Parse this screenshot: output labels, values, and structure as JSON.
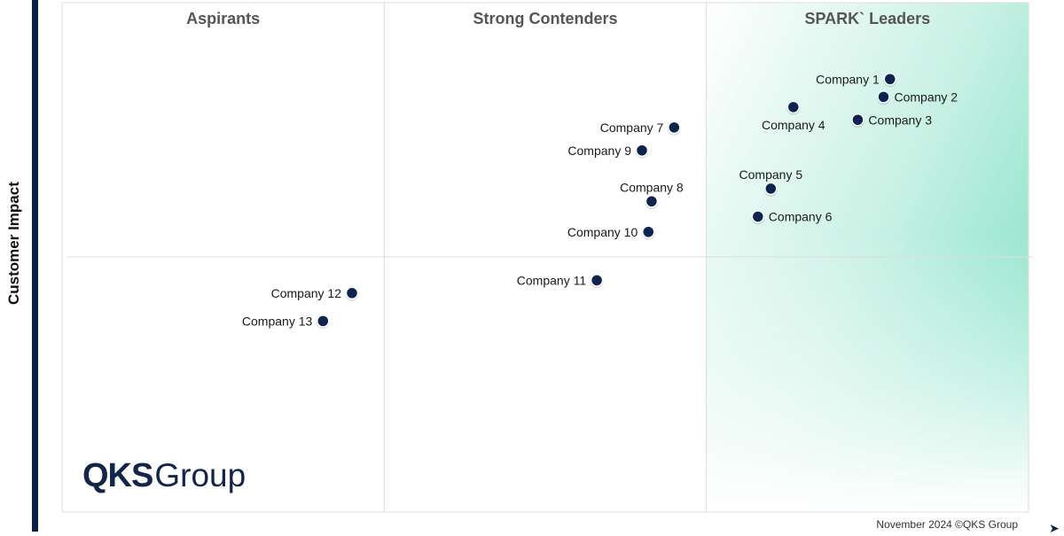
{
  "chart_data": {
    "type": "scatter",
    "title": "",
    "ylabel": "Customer Impact",
    "xlabel": "",
    "xlim": [
      0,
      3
    ],
    "ylim": [
      0,
      2
    ],
    "quadrants": [
      {
        "name": "Aspirants"
      },
      {
        "name": "Strong Contenders"
      },
      {
        "name": "SPARK` Leaders"
      }
    ],
    "points": [
      {
        "name": "Company 1",
        "x": 2.57,
        "y": 1.7,
        "label_side": "left"
      },
      {
        "name": "Company 2",
        "x": 2.55,
        "y": 1.63,
        "label_side": "right"
      },
      {
        "name": "Company 3",
        "x": 2.47,
        "y": 1.54,
        "label_side": "right"
      },
      {
        "name": "Company 4",
        "x": 2.27,
        "y": 1.59,
        "label_side": "below"
      },
      {
        "name": "Company 5",
        "x": 2.2,
        "y": 1.27,
        "label_side": "above"
      },
      {
        "name": "Company 6",
        "x": 2.16,
        "y": 1.16,
        "label_side": "right"
      },
      {
        "name": "Company 7",
        "x": 1.9,
        "y": 1.51,
        "label_side": "left"
      },
      {
        "name": "Company 8",
        "x": 1.83,
        "y": 1.22,
        "label_side": "above"
      },
      {
        "name": "Company 9",
        "x": 1.8,
        "y": 1.42,
        "label_side": "left"
      },
      {
        "name": "Company 10",
        "x": 1.82,
        "y": 1.1,
        "label_side": "left"
      },
      {
        "name": "Company 11",
        "x": 1.66,
        "y": 0.91,
        "label_side": "left"
      },
      {
        "name": "Company 12",
        "x": 0.9,
        "y": 0.86,
        "label_side": "left"
      },
      {
        "name": "Company 13",
        "x": 0.81,
        "y": 0.75,
        "label_side": "left"
      }
    ],
    "colors": {
      "point": "#0d2450",
      "leader_gradient": "#9fe6d2",
      "grid": "#dcdcdc"
    }
  },
  "brand": {
    "logo_bold": "QKS",
    "logo_light": "Group"
  },
  "footer": {
    "copyright": "November 2024 ©QKS Group"
  }
}
